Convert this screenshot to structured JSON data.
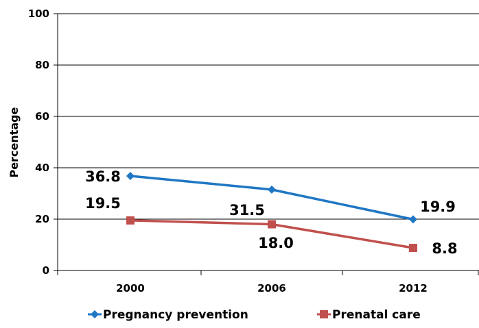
{
  "chart_data": {
    "type": "line",
    "categories": [
      "2000",
      "2006",
      "2012"
    ],
    "series": [
      {
        "name": "Pregnancy prevention",
        "values": [
          36.8,
          31.5,
          19.9
        ],
        "labels": [
          "36.8",
          "31.5",
          "19.9"
        ],
        "color": "#1F77C4",
        "marker": "diamond"
      },
      {
        "name": "Prenatal care",
        "values": [
          19.5,
          18.0,
          8.8
        ],
        "labels": [
          "19.5",
          "18.0",
          "8.8"
        ],
        "color": "#C0504D",
        "marker": "square"
      }
    ],
    "ylabel": "Percentage",
    "xlabel": "",
    "ylim": [
      0,
      100
    ],
    "yticks": [
      "0",
      "20",
      "40",
      "60",
      "80",
      "100"
    ],
    "grid": true,
    "legend": "bottom"
  }
}
